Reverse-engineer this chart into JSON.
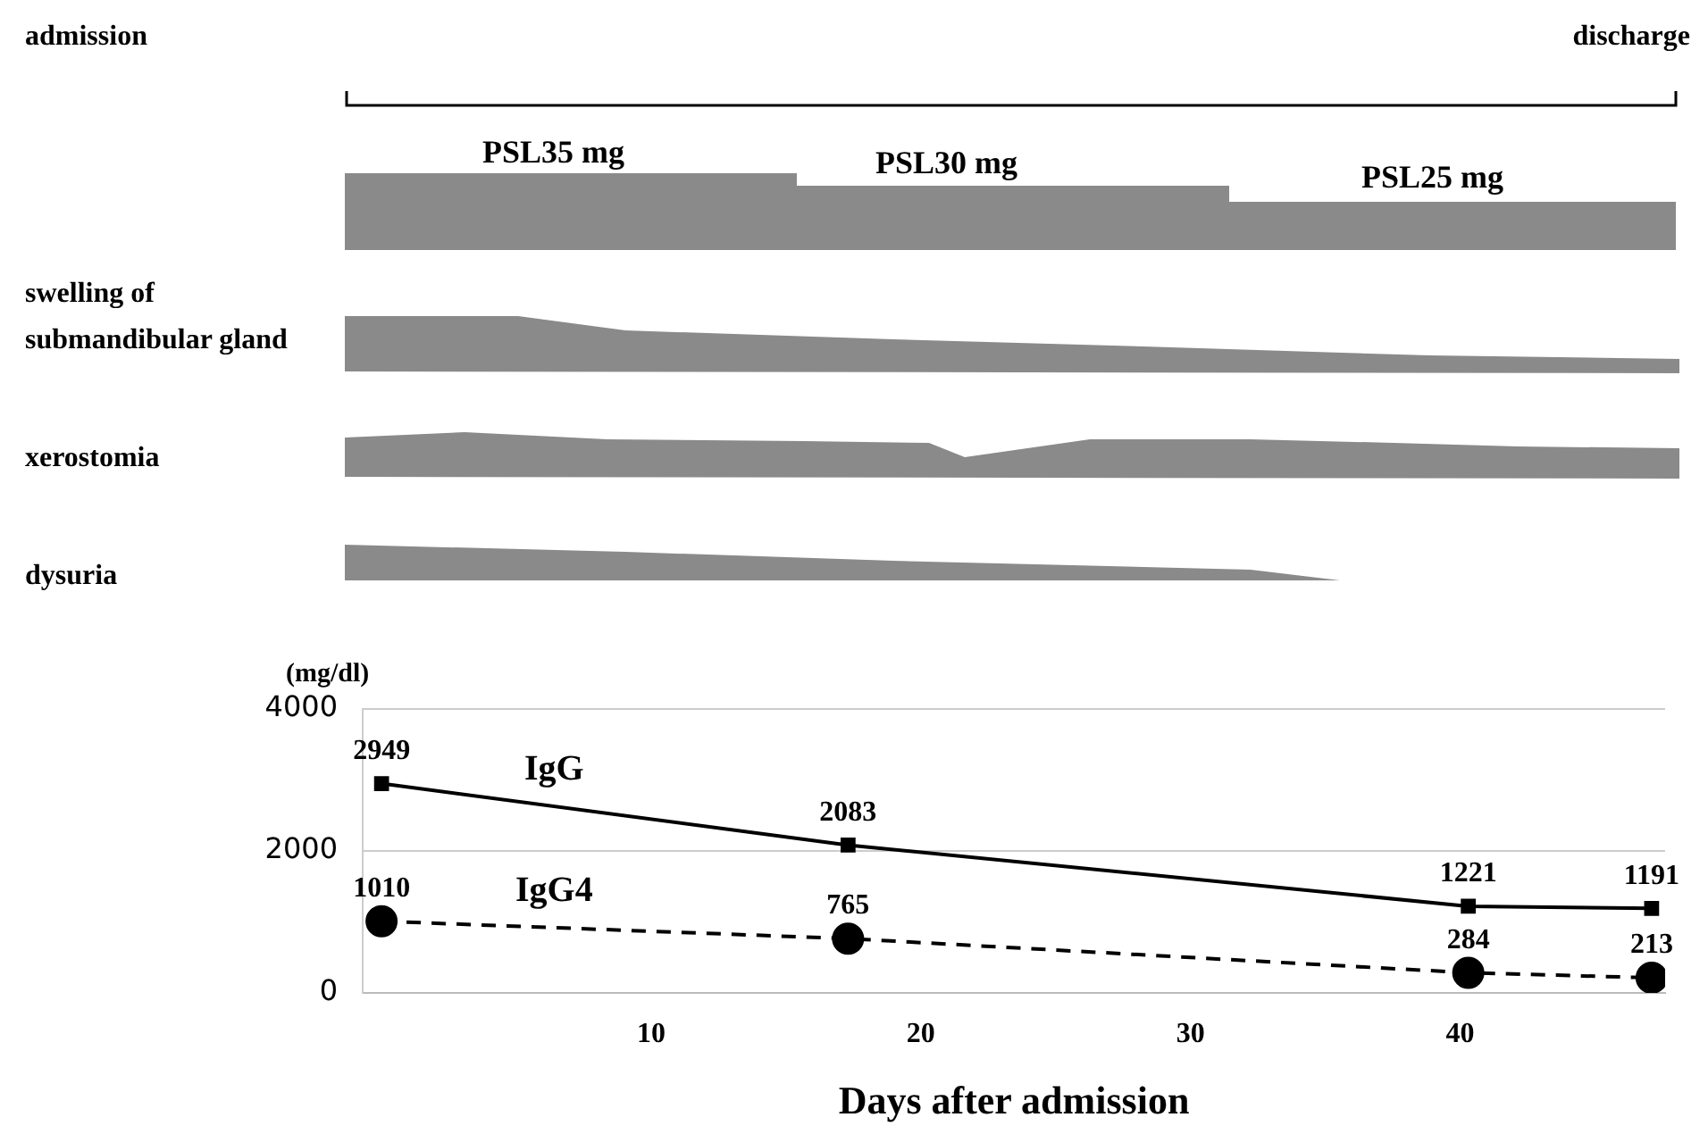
{
  "chart_data": {
    "type": "line",
    "xlabel": "Days after admission",
    "ylabel": "(mg/dl)",
    "x": [
      0,
      17.3,
      40.3,
      47.1
    ],
    "series": [
      {
        "name": "IgG",
        "color": "#000000",
        "values": [
          2949,
          2083,
          1221,
          1191
        ],
        "marker": "square",
        "line_style": "solid"
      },
      {
        "name": "IgG4",
        "color": "#000000",
        "values": [
          1010,
          765,
          284,
          213
        ],
        "marker": "circle",
        "line_style": "dashed"
      }
    ],
    "xlim": [
      -0.7,
      47.6
    ],
    "xticks": [
      10,
      20,
      30,
      40
    ],
    "ylim": [
      0,
      4000
    ],
    "yticks": [
      0,
      2000,
      4000
    ],
    "grid": "y",
    "data_labels": true,
    "legend": false,
    "annotations": [
      "admission",
      "discharge",
      "PSL35 mg",
      "PSL30 mg",
      "PSL25 mg",
      "swelling of submandibular gland",
      "xerostomia",
      "dysuria"
    ]
  }
}
